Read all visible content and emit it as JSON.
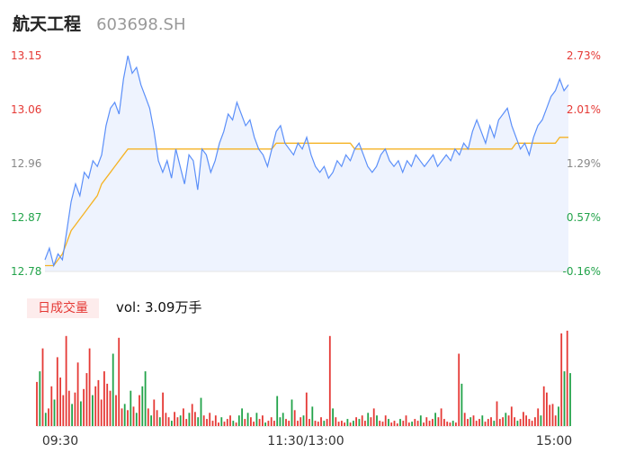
{
  "header": {
    "name": "航天工程",
    "code": "603698.SH"
  },
  "volume": {
    "tab_label": "日成交量",
    "summary": "vol: 3.09万手"
  },
  "colors": {
    "price_line": "#5b8ff9",
    "avg_line": "#f5b324",
    "up": "#e53935",
    "down": "#22a34a",
    "area": "#eef3fe"
  },
  "chart_data": {
    "type": "line",
    "price_axis": {
      "ylim": [
        12.78,
        13.15
      ],
      "ticks": [
        "13.15",
        "13.06",
        "12.96",
        "12.87",
        "12.78"
      ]
    },
    "pct_axis": {
      "ticks": [
        "2.73%",
        "2.01%",
        "1.29%",
        "0.57%",
        "-0.16%"
      ]
    },
    "x_ticks": [
      "09:30",
      "11:30/13:00",
      "15:00"
    ],
    "series": [
      {
        "key": "price",
        "values": [
          12.8,
          12.82,
          12.79,
          12.81,
          12.8,
          12.85,
          12.9,
          12.93,
          12.91,
          12.95,
          12.94,
          12.97,
          12.96,
          12.98,
          13.03,
          13.06,
          13.07,
          13.05,
          13.11,
          13.15,
          13.12,
          13.13,
          13.1,
          13.08,
          13.06,
          13.02,
          12.97,
          12.95,
          12.97,
          12.94,
          12.99,
          12.96,
          12.93,
          12.98,
          12.97,
          12.92,
          12.99,
          12.98,
          12.95,
          12.97,
          13.0,
          13.02,
          13.05,
          13.04,
          13.07,
          13.05,
          13.03,
          13.04,
          13.01,
          12.99,
          12.98,
          12.96,
          12.99,
          13.02,
          13.03,
          13.0,
          12.99,
          12.98,
          13.0,
          12.99,
          13.01,
          12.98,
          12.96,
          12.95,
          12.96,
          12.94,
          12.95,
          12.97,
          12.96,
          12.98,
          12.97,
          12.99,
          13.0,
          12.98,
          12.96,
          12.95,
          12.96,
          12.98,
          12.99,
          12.97,
          12.96,
          12.97,
          12.95,
          12.97,
          12.96,
          12.98,
          12.97,
          12.96,
          12.97,
          12.98,
          12.96,
          12.97,
          12.98,
          12.97,
          12.99,
          12.98,
          13.0,
          12.99,
          13.02,
          13.04,
          13.02,
          13.0,
          13.03,
          13.01,
          13.04,
          13.05,
          13.06,
          13.03,
          13.01,
          12.99,
          13.0,
          12.98,
          13.01,
          13.03,
          13.04,
          13.06,
          13.08,
          13.09,
          13.11,
          13.09,
          13.1
        ]
      },
      {
        "key": "avg",
        "values": [
          12.79,
          12.79,
          12.79,
          12.8,
          12.81,
          12.83,
          12.85,
          12.86,
          12.87,
          12.88,
          12.89,
          12.9,
          12.91,
          12.93,
          12.94,
          12.95,
          12.96,
          12.97,
          12.98,
          12.99,
          12.99,
          12.99,
          12.99,
          12.99,
          12.99,
          12.99,
          12.99,
          12.99,
          12.99,
          12.99,
          12.99,
          12.99,
          12.99,
          12.99,
          12.99,
          12.99,
          12.99,
          12.99,
          12.99,
          12.99,
          12.99,
          12.99,
          12.99,
          12.99,
          12.99,
          12.99,
          12.99,
          12.99,
          12.99,
          12.99,
          12.99,
          12.99,
          12.99,
          13.0,
          13.0,
          13.0,
          13.0,
          13.0,
          13.0,
          13.0,
          13.0,
          13.0,
          13.0,
          13.0,
          13.0,
          13.0,
          13.0,
          13.0,
          13.0,
          13.0,
          13.0,
          12.99,
          12.99,
          12.99,
          12.99,
          12.99,
          12.99,
          12.99,
          12.99,
          12.99,
          12.99,
          12.99,
          12.99,
          12.99,
          12.99,
          12.99,
          12.99,
          12.99,
          12.99,
          12.99,
          12.99,
          12.99,
          12.99,
          12.99,
          12.99,
          12.99,
          12.99,
          12.99,
          12.99,
          12.99,
          12.99,
          12.99,
          12.99,
          12.99,
          12.99,
          12.99,
          12.99,
          12.99,
          13.0,
          13.0,
          13.0,
          13.0,
          13.0,
          13.0,
          13.0,
          13.0,
          13.0,
          13.0,
          13.01,
          13.01,
          13.01
        ]
      }
    ],
    "volume_bars": [
      [
        50,
        "u"
      ],
      [
        62,
        "d"
      ],
      [
        88,
        "u"
      ],
      [
        15,
        "d"
      ],
      [
        20,
        "u"
      ],
      [
        45,
        "u"
      ],
      [
        30,
        "d"
      ],
      [
        78,
        "u"
      ],
      [
        55,
        "u"
      ],
      [
        35,
        "u"
      ],
      [
        102,
        "u"
      ],
      [
        40,
        "u"
      ],
      [
        25,
        "d"
      ],
      [
        38,
        "u"
      ],
      [
        72,
        "u"
      ],
      [
        28,
        "d"
      ],
      [
        42,
        "u"
      ],
      [
        60,
        "u"
      ],
      [
        88,
        "u"
      ],
      [
        35,
        "d"
      ],
      [
        45,
        "u"
      ],
      [
        52,
        "u"
      ],
      [
        30,
        "u"
      ],
      [
        62,
        "u"
      ],
      [
        48,
        "u"
      ],
      [
        40,
        "u"
      ],
      [
        82,
        "d"
      ],
      [
        35,
        "u"
      ],
      [
        100,
        "u"
      ],
      [
        20,
        "u"
      ],
      [
        25,
        "d"
      ],
      [
        18,
        "u"
      ],
      [
        40,
        "d"
      ],
      [
        22,
        "u"
      ],
      [
        15,
        "d"
      ],
      [
        35,
        "u"
      ],
      [
        45,
        "d"
      ],
      [
        62,
        "d"
      ],
      [
        20,
        "u"
      ],
      [
        12,
        "d"
      ],
      [
        30,
        "u"
      ],
      [
        18,
        "u"
      ],
      [
        10,
        "d"
      ],
      [
        38,
        "u"
      ],
      [
        15,
        "u"
      ],
      [
        10,
        "u"
      ],
      [
        6,
        "d"
      ],
      [
        16,
        "u"
      ],
      [
        10,
        "u"
      ],
      [
        12,
        "d"
      ],
      [
        20,
        "u"
      ],
      [
        8,
        "u"
      ],
      [
        15,
        "d"
      ],
      [
        25,
        "u"
      ],
      [
        16,
        "u"
      ],
      [
        10,
        "d"
      ],
      [
        32,
        "d"
      ],
      [
        12,
        "u"
      ],
      [
        8,
        "u"
      ],
      [
        15,
        "u"
      ],
      [
        6,
        "u"
      ],
      [
        12,
        "u"
      ],
      [
        4,
        "u"
      ],
      [
        10,
        "d"
      ],
      [
        5,
        "u"
      ],
      [
        8,
        "u"
      ],
      [
        12,
        "u"
      ],
      [
        6,
        "d"
      ],
      [
        4,
        "u"
      ],
      [
        12,
        "d"
      ],
      [
        20,
        "d"
      ],
      [
        8,
        "u"
      ],
      [
        15,
        "d"
      ],
      [
        10,
        "u"
      ],
      [
        5,
        "u"
      ],
      [
        15,
        "d"
      ],
      [
        8,
        "u"
      ],
      [
        12,
        "u"
      ],
      [
        4,
        "d"
      ],
      [
        6,
        "u"
      ],
      [
        10,
        "u"
      ],
      [
        6,
        "u"
      ],
      [
        34,
        "d"
      ],
      [
        10,
        "d"
      ],
      [
        15,
        "d"
      ],
      [
        8,
        "u"
      ],
      [
        6,
        "u"
      ],
      [
        30,
        "d"
      ],
      [
        18,
        "u"
      ],
      [
        6,
        "u"
      ],
      [
        10,
        "u"
      ],
      [
        12,
        "d"
      ],
      [
        38,
        "u"
      ],
      [
        8,
        "u"
      ],
      [
        22,
        "d"
      ],
      [
        6,
        "u"
      ],
      [
        5,
        "u"
      ],
      [
        10,
        "u"
      ],
      [
        6,
        "d"
      ],
      [
        8,
        "u"
      ],
      [
        102,
        "u"
      ],
      [
        20,
        "d"
      ],
      [
        10,
        "u"
      ],
      [
        5,
        "u"
      ],
      [
        6,
        "u"
      ],
      [
        4,
        "u"
      ],
      [
        8,
        "d"
      ],
      [
        4,
        "u"
      ],
      [
        6,
        "d"
      ],
      [
        10,
        "u"
      ],
      [
        8,
        "d"
      ],
      [
        12,
        "u"
      ],
      [
        6,
        "u"
      ],
      [
        15,
        "d"
      ],
      [
        10,
        "u"
      ],
      [
        20,
        "u"
      ],
      [
        12,
        "d"
      ],
      [
        6,
        "u"
      ],
      [
        5,
        "u"
      ],
      [
        12,
        "u"
      ],
      [
        8,
        "d"
      ],
      [
        4,
        "u"
      ],
      [
        6,
        "u"
      ],
      [
        3,
        "u"
      ],
      [
        8,
        "d"
      ],
      [
        6,
        "u"
      ],
      [
        12,
        "u"
      ],
      [
        4,
        "u"
      ],
      [
        5,
        "d"
      ],
      [
        8,
        "u"
      ],
      [
        6,
        "u"
      ],
      [
        12,
        "d"
      ],
      [
        4,
        "u"
      ],
      [
        10,
        "u"
      ],
      [
        6,
        "u"
      ],
      [
        8,
        "u"
      ],
      [
        15,
        "d"
      ],
      [
        10,
        "u"
      ],
      [
        20,
        "u"
      ],
      [
        8,
        "u"
      ],
      [
        5,
        "u"
      ],
      [
        4,
        "u"
      ],
      [
        6,
        "d"
      ],
      [
        4,
        "u"
      ],
      [
        82,
        "u"
      ],
      [
        48,
        "d"
      ],
      [
        15,
        "u"
      ],
      [
        8,
        "u"
      ],
      [
        10,
        "d"
      ],
      [
        12,
        "u"
      ],
      [
        6,
        "u"
      ],
      [
        8,
        "u"
      ],
      [
        12,
        "d"
      ],
      [
        5,
        "u"
      ],
      [
        8,
        "u"
      ],
      [
        10,
        "u"
      ],
      [
        6,
        "d"
      ],
      [
        28,
        "u"
      ],
      [
        8,
        "u"
      ],
      [
        10,
        "u"
      ],
      [
        15,
        "d"
      ],
      [
        12,
        "u"
      ],
      [
        22,
        "u"
      ],
      [
        10,
        "u"
      ],
      [
        6,
        "d"
      ],
      [
        8,
        "u"
      ],
      [
        16,
        "u"
      ],
      [
        12,
        "u"
      ],
      [
        8,
        "u"
      ],
      [
        6,
        "u"
      ],
      [
        10,
        "u"
      ],
      [
        20,
        "u"
      ],
      [
        12,
        "d"
      ],
      [
        45,
        "u"
      ],
      [
        38,
        "u"
      ],
      [
        24,
        "u"
      ],
      [
        25,
        "u"
      ],
      [
        12,
        "u"
      ],
      [
        22,
        "d"
      ],
      [
        105,
        "u"
      ],
      [
        62,
        "d"
      ],
      [
        108,
        "u"
      ],
      [
        60,
        "d"
      ]
    ]
  }
}
